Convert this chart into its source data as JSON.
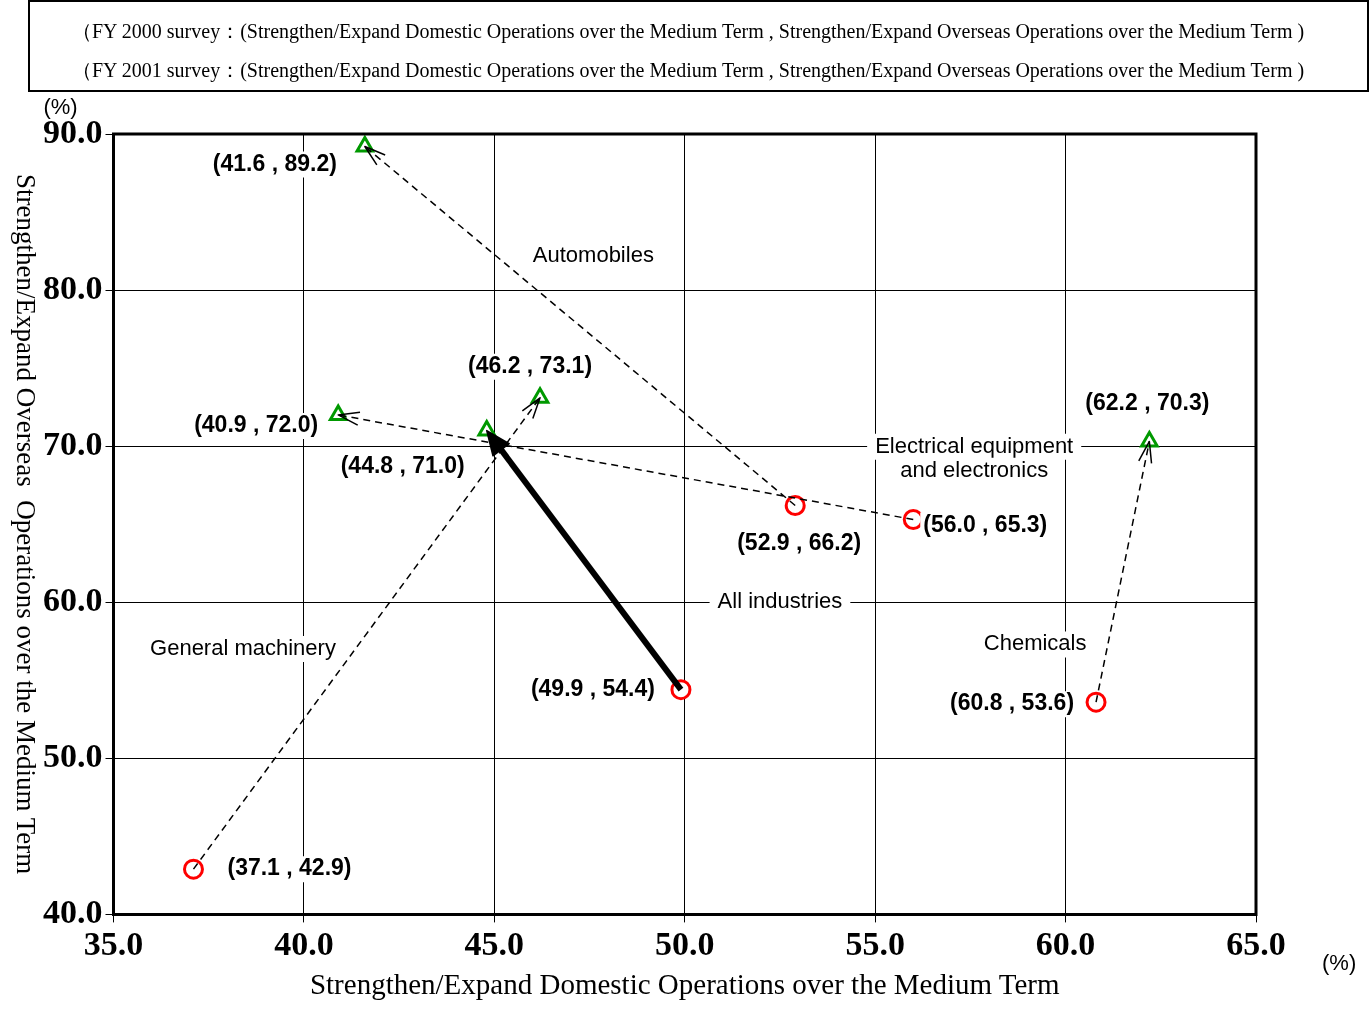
{
  "chart_data": {
    "type": "scatter",
    "title": "（FY 2000 survey：(Strengthen/Expand Domestic Operations over the Medium Term , Strengthen/Expand Overseas Operations over the Medium Term )",
    "subtitle": "（FY 2001 survey：(Strengthen/Expand Domestic Operations over the Medium Term , Strengthen/Expand Overseas Operations over the Medium Term )",
    "xlabel": "Strengthen/Expand Domestic Operations over the Medium Term",
    "ylabel": "Strengthen/Expand Overseas  Operations over the Medium Term",
    "xlim": [
      35,
      65
    ],
    "xticks": [
      {
        "value": 35,
        "label": "35.0"
      },
      {
        "value": 40,
        "label": "40.0"
      },
      {
        "value": 45,
        "label": "45.0"
      },
      {
        "value": 50,
        "label": "50.0"
      },
      {
        "value": 55,
        "label": "55.0"
      },
      {
        "value": 60,
        "label": "60.0"
      },
      {
        "value": 65,
        "label": "65.0"
      }
    ],
    "ylim": [
      40,
      90
    ],
    "yticks": [
      {
        "value": 40,
        "label": "40.0"
      },
      {
        "value": 50,
        "label": "50.0"
      },
      {
        "value": 60,
        "label": "60.0"
      },
      {
        "value": 70,
        "label": "70.0"
      },
      {
        "value": 80,
        "label": "80.0"
      },
      {
        "value": 90,
        "label": "90.0"
      }
    ],
    "grid": true,
    "series": [
      {
        "x": [
          49.9,
          37.1,
          52.9,
          56.0,
          60.8
        ],
        "values": [
          54.4,
          42.9,
          66.2,
          65.3,
          53.6
        ],
        "color": "#ff0000",
        "marker": "circle",
        "value_labels": [
          "(49.9 , 54.4)",
          "(37.1 , 42.9)",
          "(52.9 , 66.2)",
          "(56.0 , 65.3)",
          "(60.8 , 53.6)"
        ]
      },
      {
        "x": [
          44.8,
          46.2,
          41.6,
          40.9,
          62.2
        ],
        "values": [
          71.0,
          73.1,
          89.2,
          72.0,
          70.3
        ],
        "color": "#009900",
        "marker": "triangle",
        "value_labels": [
          "(44.8 , 71.0)",
          "(46.2 , 73.1)",
          "(41.6 , 89.2)",
          "(40.9 , 72.0)",
          "(62.2 , 70.3)"
        ]
      }
    ],
    "annotations": [
      "All industries",
      "General machinery",
      "Automobiles",
      "Electrical equipment\nand electronics",
      "Chemicals",
      "(%)",
      "(%)"
    ]
  }
}
